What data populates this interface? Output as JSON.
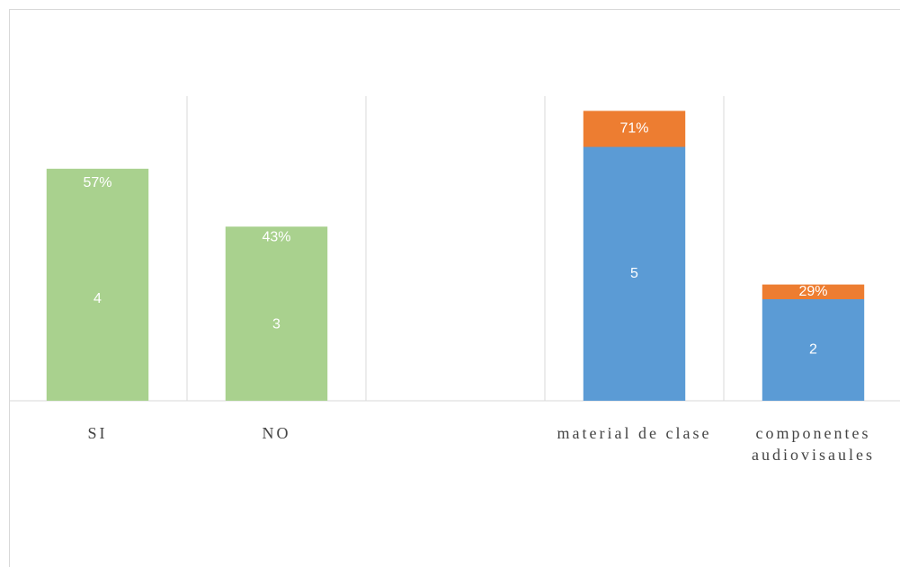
{
  "chart_data": {
    "type": "stacked_bar",
    "categories": [
      "SI",
      "NO",
      null,
      "material de clase",
      "componentes audiovisaules"
    ],
    "series": [
      {
        "colors": [
          "#a9d18e",
          "#a9d18e",
          null,
          "#5b9bd5",
          "#5b9bd5"
        ],
        "values": [
          4,
          3,
          null,
          5,
          2
        ]
      },
      {
        "colors": [
          "#a9d18e",
          "#a9d18e",
          null,
          "#ed7d31",
          "#ed7d31"
        ],
        "values": [
          0.57,
          0.43,
          null,
          0.71,
          0.29
        ],
        "value_labels": [
          "57%",
          "43%",
          null,
          "71%",
          "29%"
        ]
      }
    ],
    "ylim": [
      0,
      6
    ],
    "xgrid": true
  }
}
